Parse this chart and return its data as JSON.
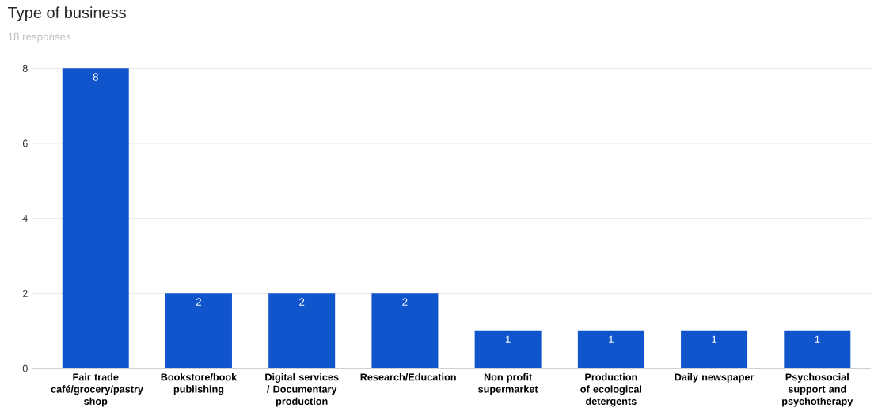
{
  "chart_data": {
    "type": "bar",
    "title": "Type of business",
    "subtitle": "18 responses",
    "categories": [
      "Fair trade café/grocery/pastry shop",
      "Bookstore/book publishing",
      "Digital services / Documentary production",
      "Research/Education",
      "Non profit supermarket",
      "Production of ecological detergents",
      "Daily newspaper",
      "Psychosocial support and psychotherapy"
    ],
    "values": [
      8,
      2,
      2,
      2,
      1,
      1,
      1,
      1
    ],
    "color": "#1155cc",
    "ylim": [
      0,
      8
    ],
    "yticks": [
      0,
      2,
      4,
      6,
      8
    ],
    "grid": "y",
    "data_labels": true
  }
}
